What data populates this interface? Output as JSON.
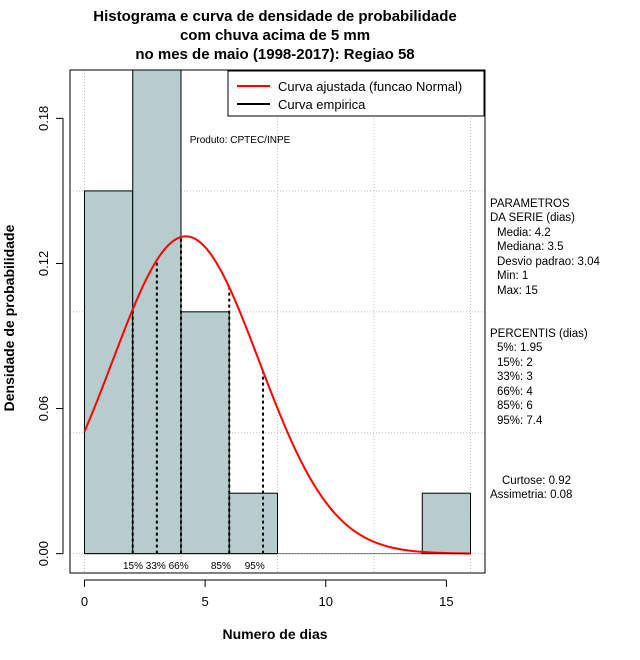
{
  "chart_data": {
    "type": "histogram",
    "title_lines": [
      "Histograma e curva de densidade de probabilidade",
      "com chuva acima de 5 mm",
      "no mes de maio (1998-2017): Regiao 58"
    ],
    "xlabel": "Numero de dias",
    "ylabel": "Densidade de probabilidade",
    "xlim": [
      -0.6,
      16.6
    ],
    "ylim": [
      -0.008,
      0.2
    ],
    "x_ticks": [
      0,
      5,
      10,
      15
    ],
    "y_ticks": [
      0.0,
      0.06,
      0.12,
      0.18
    ],
    "y_tick_labels": [
      "0.00",
      "0.06",
      "0.12",
      "0.18"
    ],
    "grid_x": [
      0,
      4,
      8,
      12,
      16
    ],
    "grid_y": [
      0.0,
      0.05,
      0.1,
      0.15,
      0.2
    ],
    "bins": [
      {
        "start": 0,
        "end": 2,
        "density": 0.15
      },
      {
        "start": 2,
        "end": 4,
        "density": 0.2
      },
      {
        "start": 4,
        "end": 6,
        "density": 0.1
      },
      {
        "start": 6,
        "end": 8,
        "density": 0.025
      },
      {
        "start": 8,
        "end": 10,
        "density": 0
      },
      {
        "start": 10,
        "end": 12,
        "density": 0
      },
      {
        "start": 12,
        "end": 14,
        "density": 0
      },
      {
        "start": 14,
        "end": 16,
        "density": 0.025
      }
    ],
    "normal_fit": {
      "mean": 4.2,
      "sd": 3.04,
      "from": 0,
      "to": 16
    },
    "percentile_lines": [
      {
        "x": 2,
        "label": "15%"
      },
      {
        "x": 3,
        "label": "33%"
      },
      {
        "x": 4,
        "label": "66%"
      },
      {
        "x": 6,
        "label": "85%"
      },
      {
        "x": 7.4,
        "label": "95%"
      }
    ],
    "percentile_label_text": "15% 33% 66%        85%     95%",
    "legend": {
      "position": "top-right",
      "entries": [
        {
          "label": "Curva ajustada (funcao Normal)",
          "color": "#ff0000"
        },
        {
          "label": "Curva empirica",
          "color": "#000000"
        }
      ]
    },
    "annotation": "Produto: CPTEC/INPE",
    "bar_fill": "#b7cccc",
    "curve_color": "#ff0000"
  },
  "side_panel": {
    "params_title": [
      "PARAMETROS",
      "DA SERIE (dias)"
    ],
    "params": [
      "Media: 4.2",
      "Mediana: 3.5",
      "Desvio padrao: 3.04",
      "Min: 1",
      "Max: 15"
    ],
    "percentis_title": "PERCENTIS (dias)",
    "percentis": [
      "5%: 1.95",
      "15%: 2",
      "33%: 3",
      "66%: 4",
      "85%: 6",
      "95%: 7.4"
    ],
    "curtose": "Curtose: 0.92",
    "assimetria": "Assimetria: 0.08"
  }
}
